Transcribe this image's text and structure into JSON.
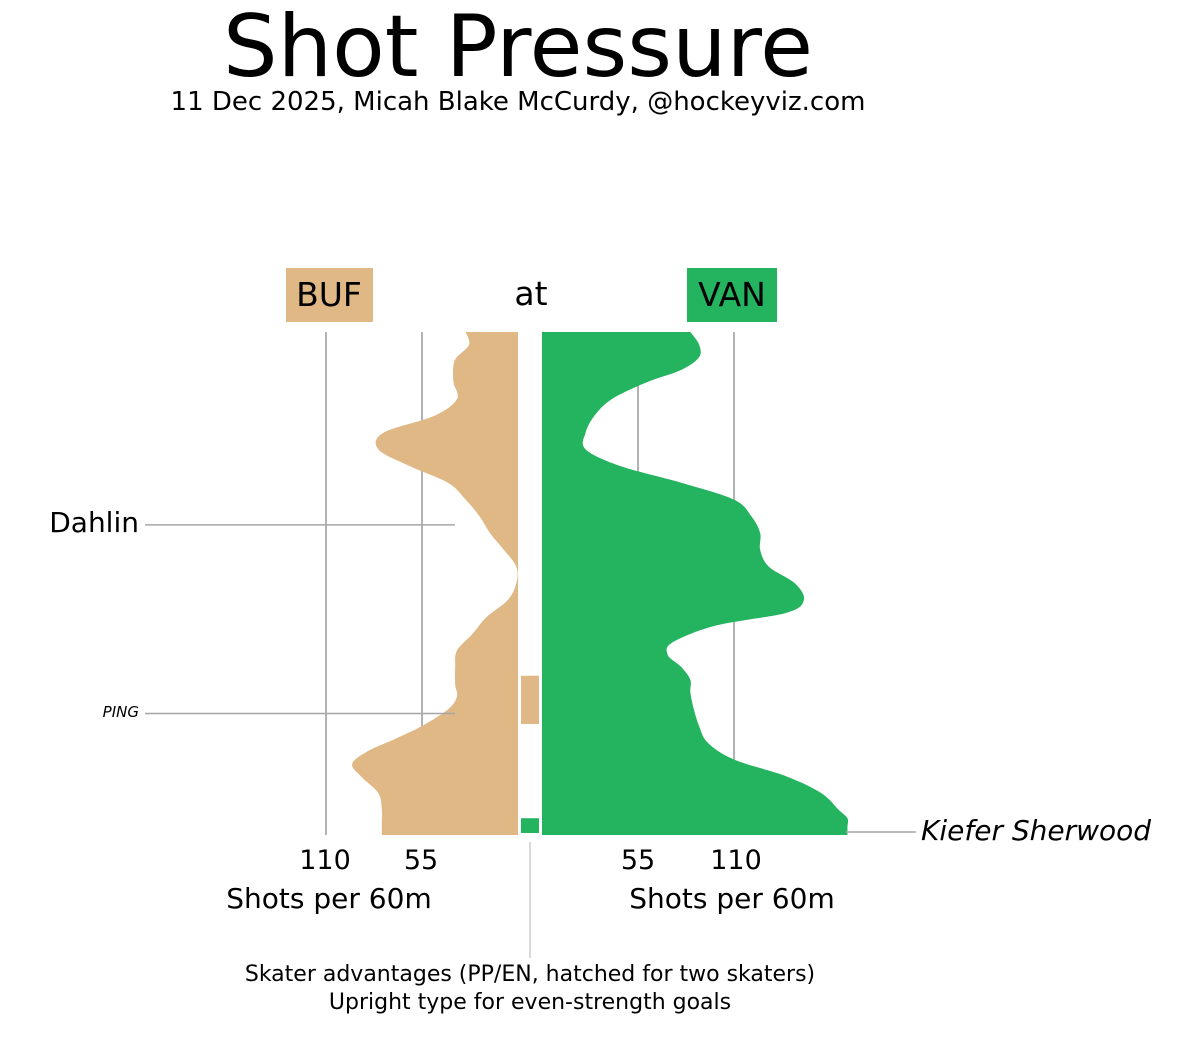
{
  "header": {
    "title": "Shot Pressure",
    "subtitle": "11 Dec 2025, Micah Blake McCurdy, @hockeyviz.com"
  },
  "teams": {
    "away": {
      "abbr": "BUF",
      "color": "#dfb886"
    },
    "at_label": "at",
    "home": {
      "abbr": "VAN",
      "color": "#24b35e"
    }
  },
  "chart_data": {
    "type": "area",
    "orientation": "vertical-time, mirrored",
    "x_axis_label_left": "Shots per 60m",
    "x_axis_label_right": "Shots per 60m",
    "ticks_left": [
      "110",
      "55"
    ],
    "ticks_right": [
      "55",
      "110"
    ],
    "tick_values": [
      55,
      110
    ],
    "t_range": [
      0,
      60
    ],
    "series": [
      {
        "name": "BUF",
        "color": "#dfb886",
        "t": [
          0,
          1.5,
          3,
          4,
          6,
          8,
          10,
          12,
          14,
          16,
          18,
          20,
          22,
          24,
          26,
          28,
          30,
          32,
          34,
          36,
          38,
          40,
          42,
          43.5,
          45,
          47,
          48.5,
          50,
          51.5,
          53,
          55,
          57,
          58.5,
          60
        ],
        "values": [
          30,
          28,
          35,
          37,
          37,
          35,
          48,
          77,
          80,
          62,
          40,
          30,
          22,
          16,
          8,
          1,
          1,
          6,
          18,
          26,
          35,
          36,
          36,
          35,
          40,
          55,
          70,
          86,
          95,
          90,
          80,
          78,
          78,
          78
        ]
      },
      {
        "name": "VAN",
        "color": "#24b35e",
        "t": [
          0,
          1.5,
          3,
          4.5,
          6,
          8,
          10,
          12,
          14,
          16,
          18,
          20,
          22,
          24,
          26,
          28,
          30,
          32,
          33.5,
          35,
          37,
          38.5,
          40,
          41.5,
          43,
          45,
          47,
          49,
          51,
          53,
          55,
          57,
          58,
          59,
          60
        ],
        "values": [
          85,
          90,
          90,
          80,
          60,
          40,
          30,
          25,
          25,
          45,
          80,
          110,
          120,
          125,
          125,
          130,
          145,
          150,
          140,
          100,
          75,
          72,
          80,
          85,
          85,
          87,
          90,
          95,
          110,
          140,
          160,
          170,
          175,
          175,
          175
        ]
      }
    ],
    "advantages": [
      {
        "team": "BUF",
        "t_start": 41,
        "t_end": 47
      },
      {
        "team": "VAN",
        "t_start": 58,
        "t_end": 60
      }
    ],
    "goals": [
      {
        "player": "Dahlin",
        "team": "BUF",
        "t": 23,
        "style": "upright"
      },
      {
        "player": "PING",
        "team": "BUF",
        "t": 45.5,
        "style": "italic-small"
      },
      {
        "player": "Kiefer Sherwood",
        "team": "VAN",
        "t": 60,
        "style": "italic"
      }
    ]
  },
  "footer": {
    "note_line1": "Skater advantages (PP/EN, hatched for two skaters)",
    "note_line2": "Upright type for even-strength goals"
  }
}
